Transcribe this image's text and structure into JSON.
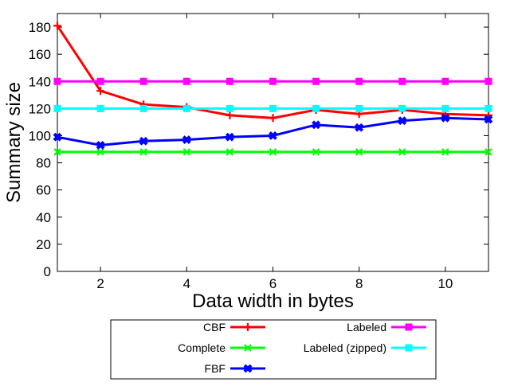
{
  "chart_data": {
    "type": "line",
    "xlabel": "Data width in bytes",
    "ylabel": "Summary size",
    "xlim": [
      1,
      11
    ],
    "ylim": [
      0,
      190
    ],
    "xticks": [
      2,
      4,
      6,
      8,
      10
    ],
    "yticks": [
      0,
      20,
      40,
      60,
      80,
      100,
      120,
      140,
      160,
      180
    ],
    "grid": false,
    "legend_position": "below",
    "x": [
      1,
      2,
      3,
      4,
      5,
      6,
      7,
      8,
      9,
      10,
      11
    ],
    "series": [
      {
        "name": "CBF",
        "color": "#ff0000",
        "marker": "plus",
        "values": [
          181,
          133,
          123,
          121,
          115,
          113,
          119,
          116,
          119,
          116,
          115
        ]
      },
      {
        "name": "Complete",
        "color": "#00ff00",
        "marker": "x",
        "values": [
          88,
          88,
          88,
          88,
          88,
          88,
          88,
          88,
          88,
          88,
          88
        ]
      },
      {
        "name": "FBF",
        "color": "#0000ff",
        "marker": "filled-x",
        "values": [
          99,
          93,
          96,
          97,
          99,
          100,
          108,
          106,
          111,
          113,
          112
        ]
      },
      {
        "name": "Labeled",
        "color": "#ff00ff",
        "marker": "filled-square",
        "values": [
          140,
          140,
          140,
          140,
          140,
          140,
          140,
          140,
          140,
          140,
          140
        ]
      },
      {
        "name": "Labeled (zipped)",
        "color": "#00ffff",
        "marker": "filled-square",
        "values": [
          120,
          120,
          120,
          120,
          120,
          120,
          120,
          120,
          120,
          120,
          120
        ]
      }
    ]
  }
}
